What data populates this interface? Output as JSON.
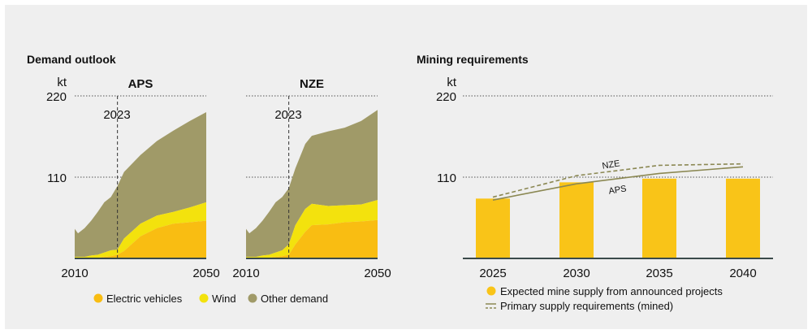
{
  "chart_data": [
    {
      "type": "area",
      "title": "Demand outlook",
      "unit": "kt",
      "panels": [
        {
          "name": "APS",
          "x": [
            2010,
            2011,
            2013,
            2015,
            2017,
            2019,
            2021,
            2023,
            2025,
            2030,
            2035,
            2040,
            2045,
            2050
          ],
          "series": [
            {
              "name": "Electric vehicles",
              "values": [
                0,
                0,
                0,
                1,
                1,
                2,
                3,
                5,
                10,
                30,
                41,
                47,
                49,
                51
              ]
            },
            {
              "name": "Wind",
              "values": [
                2,
                2,
                2,
                3,
                4,
                6,
                8,
                7,
                17,
                17,
                17,
                16,
                20,
                25
              ]
            },
            {
              "name": "Other demand",
              "values": [
                38,
                32,
                39,
                47,
                58,
                68,
                72,
                86,
                90,
                93,
                101,
                110,
                117,
                122
              ]
            }
          ]
        },
        {
          "name": "NZE",
          "x": [
            2010,
            2011,
            2013,
            2015,
            2017,
            2019,
            2021,
            2023,
            2025,
            2028,
            2030,
            2035,
            2040,
            2045,
            2050
          ],
          "series": [
            {
              "name": "Electric vehicles",
              "values": [
                0,
                0,
                0,
                1,
                1,
                2,
                3,
                5,
                19,
                36,
                45,
                46,
                49,
                50,
                52
              ]
            },
            {
              "name": "Wind",
              "values": [
                2,
                2,
                2,
                3,
                4,
                6,
                8,
                14,
                26,
                31,
                29,
                25,
                23,
                23,
                27
              ]
            },
            {
              "name": "Other demand",
              "values": [
                38,
                32,
                39,
                47,
                58,
                68,
                72,
                76,
                77,
                88,
                92,
                101,
                105,
                113,
                122
              ]
            }
          ]
        }
      ],
      "x_tick_labels": [
        "2010",
        "2050"
      ],
      "y_ticks": [
        110,
        220
      ],
      "y_tick_labels": [
        "110",
        "220"
      ],
      "ylim": [
        0,
        220
      ],
      "xlim": [
        2010,
        2050
      ],
      "annotation": "2023",
      "annotation_x": 2023,
      "legend": [
        "Electric vehicles",
        "Wind",
        "Other demand"
      ],
      "legend_position": "bottom",
      "grid": "dotted horizontal at 110 and 220"
    },
    {
      "type": "bar",
      "title": "Mining requirements",
      "unit": "kt",
      "categories": [
        "2025",
        "2030",
        "2035",
        "2040"
      ],
      "bars": {
        "name": "Expected mine supply from announced projects",
        "values": [
          81,
          103,
          108,
          108
        ]
      },
      "lines": [
        {
          "name": "APS",
          "style": "solid",
          "values": [
            79,
            101,
            115,
            124
          ]
        },
        {
          "name": "NZE",
          "style": "dashed",
          "values": [
            83,
            112,
            126,
            128
          ]
        }
      ],
      "line_legend": "Primary supply requirements (mined)",
      "y_ticks": [
        110,
        220
      ],
      "y_tick_labels": [
        "110",
        "220"
      ],
      "ylim": [
        0,
        220
      ],
      "legend_position": "bottom",
      "grid": "dotted horizontal at 110 and 220"
    }
  ],
  "colors": {
    "background": "#efefef",
    "electric_vehicles": "#f9bd12",
    "wind": "#f3e20d",
    "other_demand": "#a09a68",
    "bars": "#f9c418",
    "lines": "#8b8853",
    "axis": "#3a4a4a"
  }
}
